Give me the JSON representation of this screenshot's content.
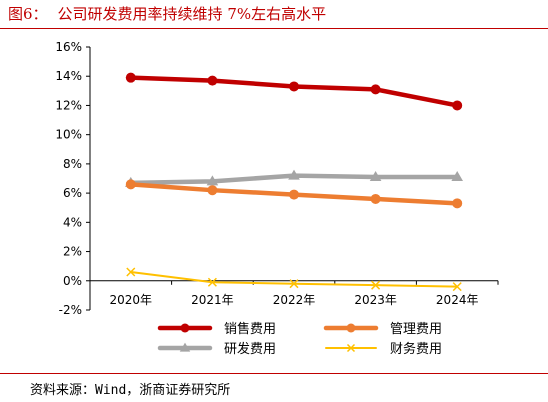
{
  "figure": {
    "number": "图6：",
    "title": "公司研发费用率持续维持 7%左右高水平"
  },
  "source": "资料来源：Wind，浙商证券研究所",
  "chart_data": {
    "type": "line",
    "categories": [
      "2020年",
      "2021年",
      "2022年",
      "2023年",
      "2024年"
    ],
    "ylim": [
      -2,
      16
    ],
    "yticks": [
      -2,
      0,
      2,
      4,
      6,
      8,
      10,
      12,
      14,
      16
    ],
    "yunit": "%",
    "grid": false,
    "legend_position": "bottom",
    "series": [
      {
        "name": "销售费用",
        "color": "#c00000",
        "marker": "circle",
        "values": [
          13.9,
          13.7,
          13.3,
          13.1,
          12.0
        ]
      },
      {
        "name": "管理费用",
        "color": "#ed7d31",
        "marker": "circle",
        "values": [
          6.6,
          6.2,
          5.9,
          5.6,
          5.3
        ]
      },
      {
        "name": "研发费用",
        "color": "#a5a5a5",
        "marker": "triangle",
        "values": [
          6.7,
          6.8,
          7.2,
          7.1,
          7.1
        ]
      },
      {
        "name": "财务费用",
        "color": "#ffc000",
        "marker": "cross",
        "values": [
          0.6,
          -0.1,
          -0.2,
          -0.3,
          -0.4
        ]
      }
    ]
  }
}
